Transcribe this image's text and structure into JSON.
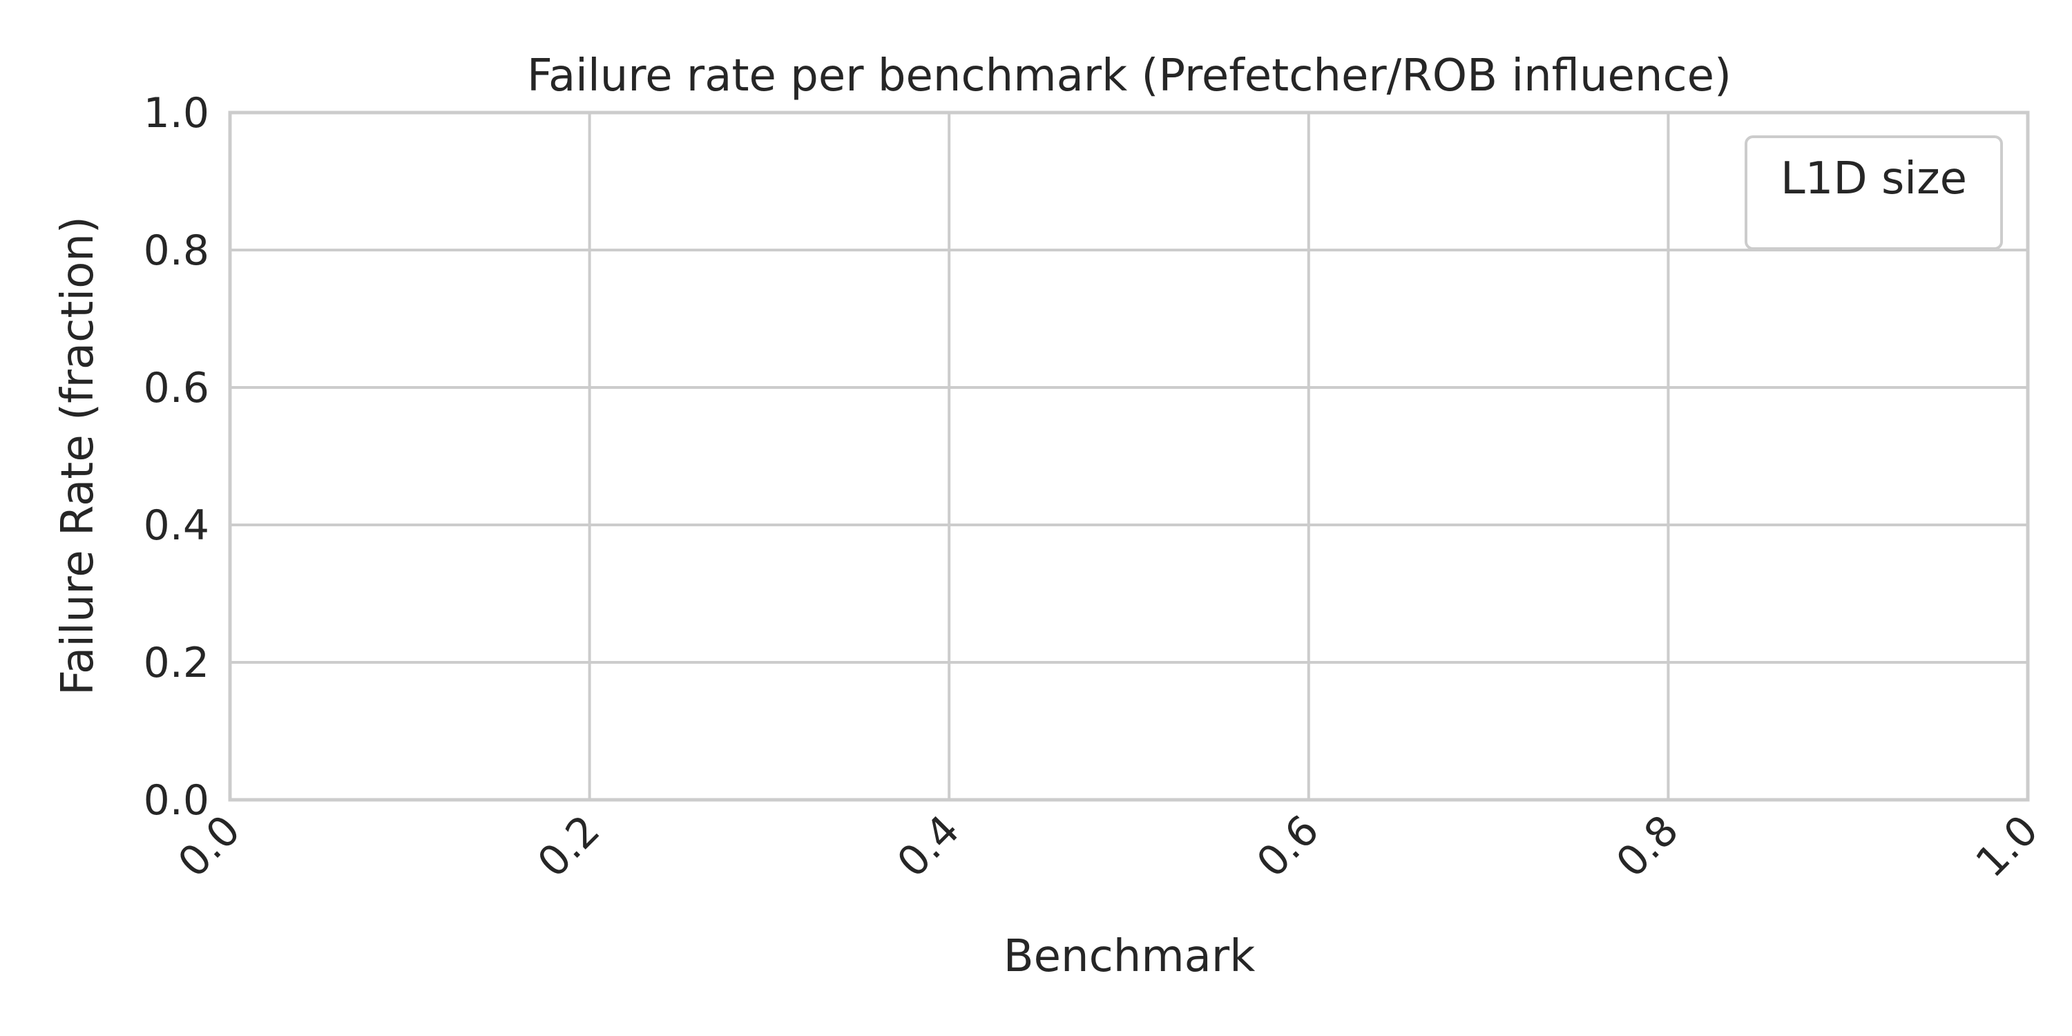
{
  "chart_data": {
    "type": "bar",
    "title": "Failure rate per benchmark (Prefetcher/ROB influence)",
    "xlabel": "Benchmark",
    "ylabel": "Failure Rate (fraction)",
    "xlim": [
      0.0,
      1.0
    ],
    "ylim": [
      0.0,
      1.0
    ],
    "xticks": [
      "0.0",
      "0.2",
      "0.4",
      "0.6",
      "0.8",
      "1.0"
    ],
    "yticks": [
      "0.0",
      "0.2",
      "0.4",
      "0.6",
      "0.8",
      "1.0"
    ],
    "grid": true,
    "legend": {
      "title": "L1D size",
      "placement": "top-right",
      "entries": []
    },
    "series": []
  }
}
